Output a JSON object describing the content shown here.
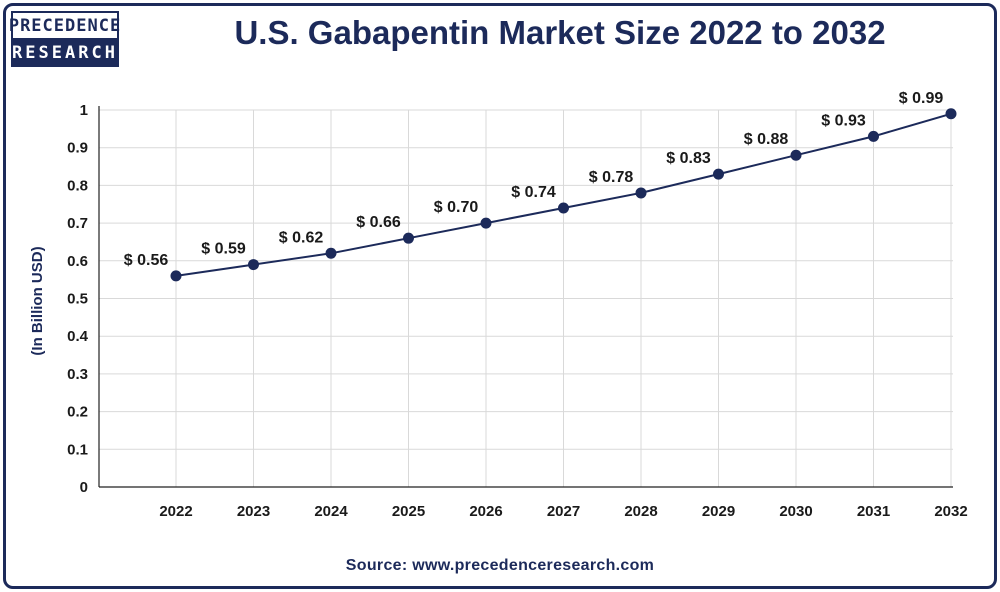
{
  "logo": {
    "line1": "PRECEDENCE",
    "line2": "RESEARCH"
  },
  "source": "Source: www.precedenceresearch.com",
  "colors": {
    "navy": "#1c2a5a",
    "grid": "#d9d9d9",
    "axis": "#222222"
  },
  "chart_data": {
    "type": "line",
    "title": "U.S. Gabapentin Market Size 2022 to 2032",
    "xlabel": "",
    "ylabel": "(In Billion USD)",
    "categories": [
      "2022",
      "2023",
      "2024",
      "2025",
      "2026",
      "2027",
      "2028",
      "2029",
      "2030",
      "2031",
      "2032"
    ],
    "values": [
      0.56,
      0.59,
      0.62,
      0.66,
      0.7,
      0.74,
      0.78,
      0.83,
      0.88,
      0.93,
      0.99
    ],
    "data_labels": [
      "$ 0.56",
      "$ 0.59",
      "$ 0.62",
      "$ 0.66",
      "$ 0.70",
      "$ 0.74",
      "$ 0.78",
      "$ 0.83",
      "$ 0.88",
      "$ 0.93",
      "$ 0.99"
    ],
    "ylim": [
      0,
      1
    ],
    "yticks": [
      0,
      0.1,
      0.2,
      0.3,
      0.4,
      0.5,
      0.6,
      0.7,
      0.8,
      0.9,
      1
    ],
    "ytick_labels": [
      "0",
      "0.1",
      "0.2",
      "0.3",
      "0.4",
      "0.5",
      "0.6",
      "0.7",
      "0.8",
      "0.9",
      "1"
    ],
    "grid": true,
    "legend": "none"
  }
}
